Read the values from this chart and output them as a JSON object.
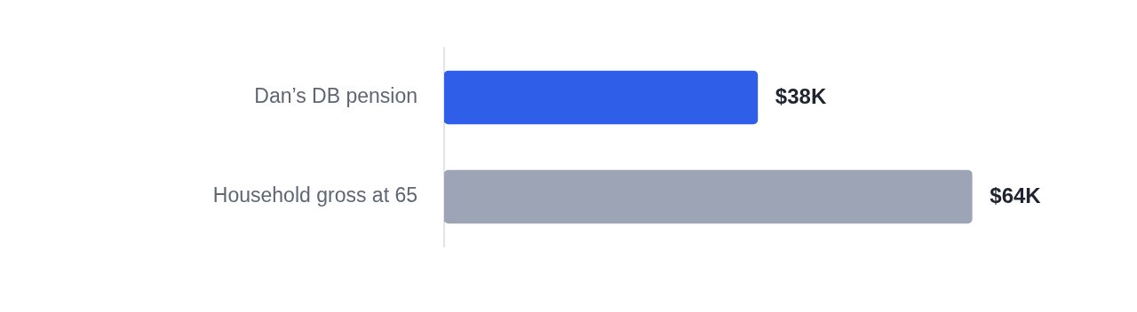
{
  "chart_data": {
    "type": "bar",
    "orientation": "horizontal",
    "tick_labels": "y",
    "categories": [
      "Dan’s DB pension",
      "Household gross at 65"
    ],
    "values": [
      38,
      64
    ],
    "colors": [
      "#2f5fe8",
      "#9ca4b5"
    ],
    "value_labels": [
      "$38K",
      "$64K"
    ]
  }
}
